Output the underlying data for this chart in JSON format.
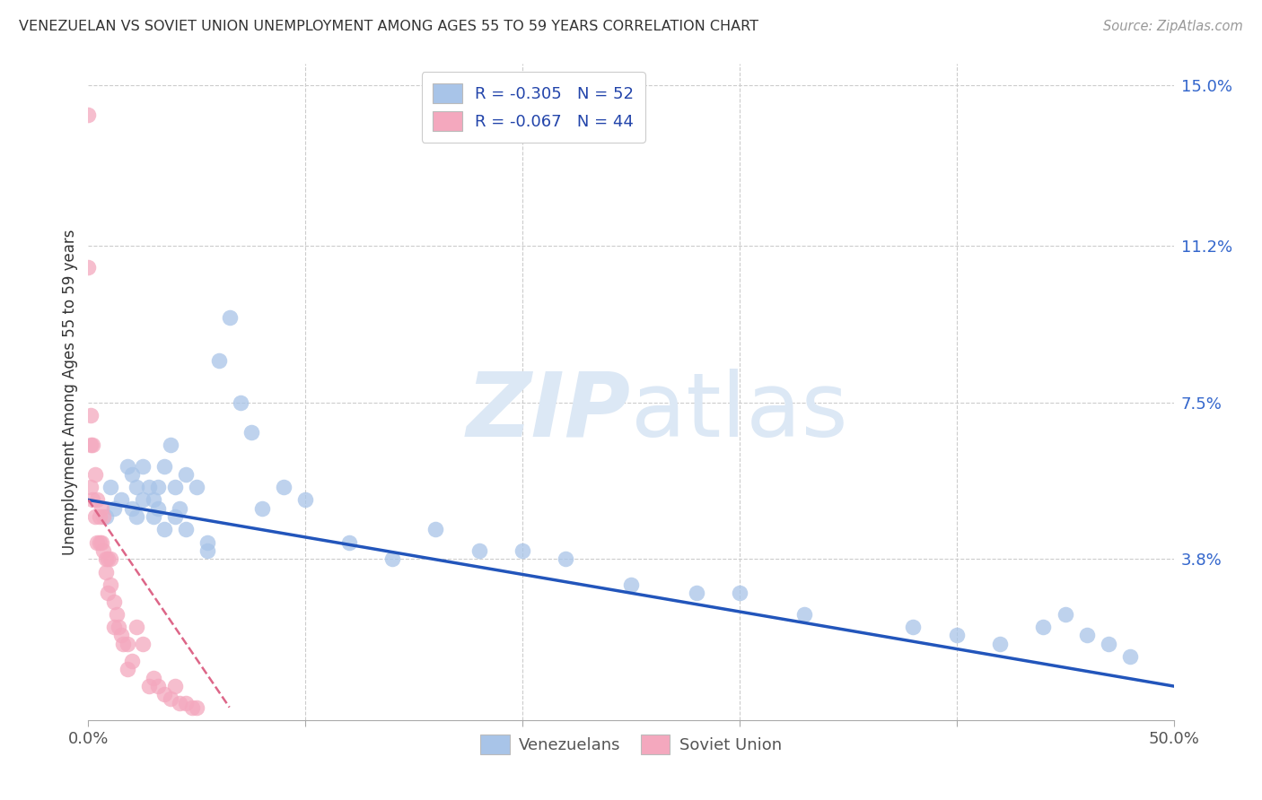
{
  "title": "VENEZUELAN VS SOVIET UNION UNEMPLOYMENT AMONG AGES 55 TO 59 YEARS CORRELATION CHART",
  "source": "Source: ZipAtlas.com",
  "ylabel": "Unemployment Among Ages 55 to 59 years",
  "xlim": [
    0.0,
    0.5
  ],
  "ylim": [
    0.0,
    0.155
  ],
  "ytick_right_labels": [
    "3.8%",
    "7.5%",
    "11.2%",
    "15.0%"
  ],
  "ytick_right_values": [
    0.038,
    0.075,
    0.112,
    0.15
  ],
  "blue_R": -0.305,
  "blue_N": 52,
  "pink_R": -0.067,
  "pink_N": 44,
  "blue_color": "#a8c4e8",
  "pink_color": "#f4a8be",
  "blue_line_color": "#2255bb",
  "pink_line_color": "#dd6688",
  "legend_label_blue": "Venezuelans",
  "legend_label_pink": "Soviet Union",
  "watermark_zip": "ZIP",
  "watermark_atlas": "atlas",
  "blue_scatter_x": [
    0.008,
    0.01,
    0.012,
    0.015,
    0.018,
    0.02,
    0.02,
    0.022,
    0.022,
    0.025,
    0.025,
    0.028,
    0.03,
    0.03,
    0.032,
    0.032,
    0.035,
    0.035,
    0.038,
    0.04,
    0.04,
    0.042,
    0.045,
    0.045,
    0.05,
    0.055,
    0.055,
    0.06,
    0.065,
    0.07,
    0.075,
    0.08,
    0.09,
    0.1,
    0.12,
    0.14,
    0.16,
    0.18,
    0.2,
    0.22,
    0.25,
    0.28,
    0.3,
    0.33,
    0.38,
    0.4,
    0.42,
    0.44,
    0.45,
    0.46,
    0.47,
    0.48
  ],
  "blue_scatter_y": [
    0.048,
    0.055,
    0.05,
    0.052,
    0.06,
    0.05,
    0.058,
    0.055,
    0.048,
    0.06,
    0.052,
    0.055,
    0.052,
    0.048,
    0.055,
    0.05,
    0.045,
    0.06,
    0.065,
    0.055,
    0.048,
    0.05,
    0.058,
    0.045,
    0.055,
    0.042,
    0.04,
    0.085,
    0.095,
    0.075,
    0.068,
    0.05,
    0.055,
    0.052,
    0.042,
    0.038,
    0.045,
    0.04,
    0.04,
    0.038,
    0.032,
    0.03,
    0.03,
    0.025,
    0.022,
    0.02,
    0.018,
    0.022,
    0.025,
    0.02,
    0.018,
    0.015
  ],
  "pink_scatter_x": [
    0.0,
    0.0,
    0.001,
    0.001,
    0.001,
    0.002,
    0.002,
    0.003,
    0.003,
    0.004,
    0.004,
    0.005,
    0.005,
    0.006,
    0.006,
    0.007,
    0.007,
    0.008,
    0.008,
    0.009,
    0.009,
    0.01,
    0.01,
    0.012,
    0.012,
    0.013,
    0.014,
    0.015,
    0.016,
    0.018,
    0.018,
    0.02,
    0.022,
    0.025,
    0.028,
    0.03,
    0.032,
    0.035,
    0.038,
    0.04,
    0.042,
    0.045,
    0.048,
    0.05
  ],
  "pink_scatter_y": [
    0.143,
    0.107,
    0.072,
    0.065,
    0.055,
    0.065,
    0.052,
    0.058,
    0.048,
    0.052,
    0.042,
    0.048,
    0.042,
    0.05,
    0.042,
    0.048,
    0.04,
    0.038,
    0.035,
    0.038,
    0.03,
    0.038,
    0.032,
    0.028,
    0.022,
    0.025,
    0.022,
    0.02,
    0.018,
    0.018,
    0.012,
    0.014,
    0.022,
    0.018,
    0.008,
    0.01,
    0.008,
    0.006,
    0.005,
    0.008,
    0.004,
    0.004,
    0.003,
    0.003
  ],
  "blue_line_x": [
    0.0,
    0.5
  ],
  "blue_line_y": [
    0.052,
    0.008
  ],
  "pink_line_x": [
    0.0,
    0.065
  ],
  "pink_line_y": [
    0.052,
    0.003
  ]
}
